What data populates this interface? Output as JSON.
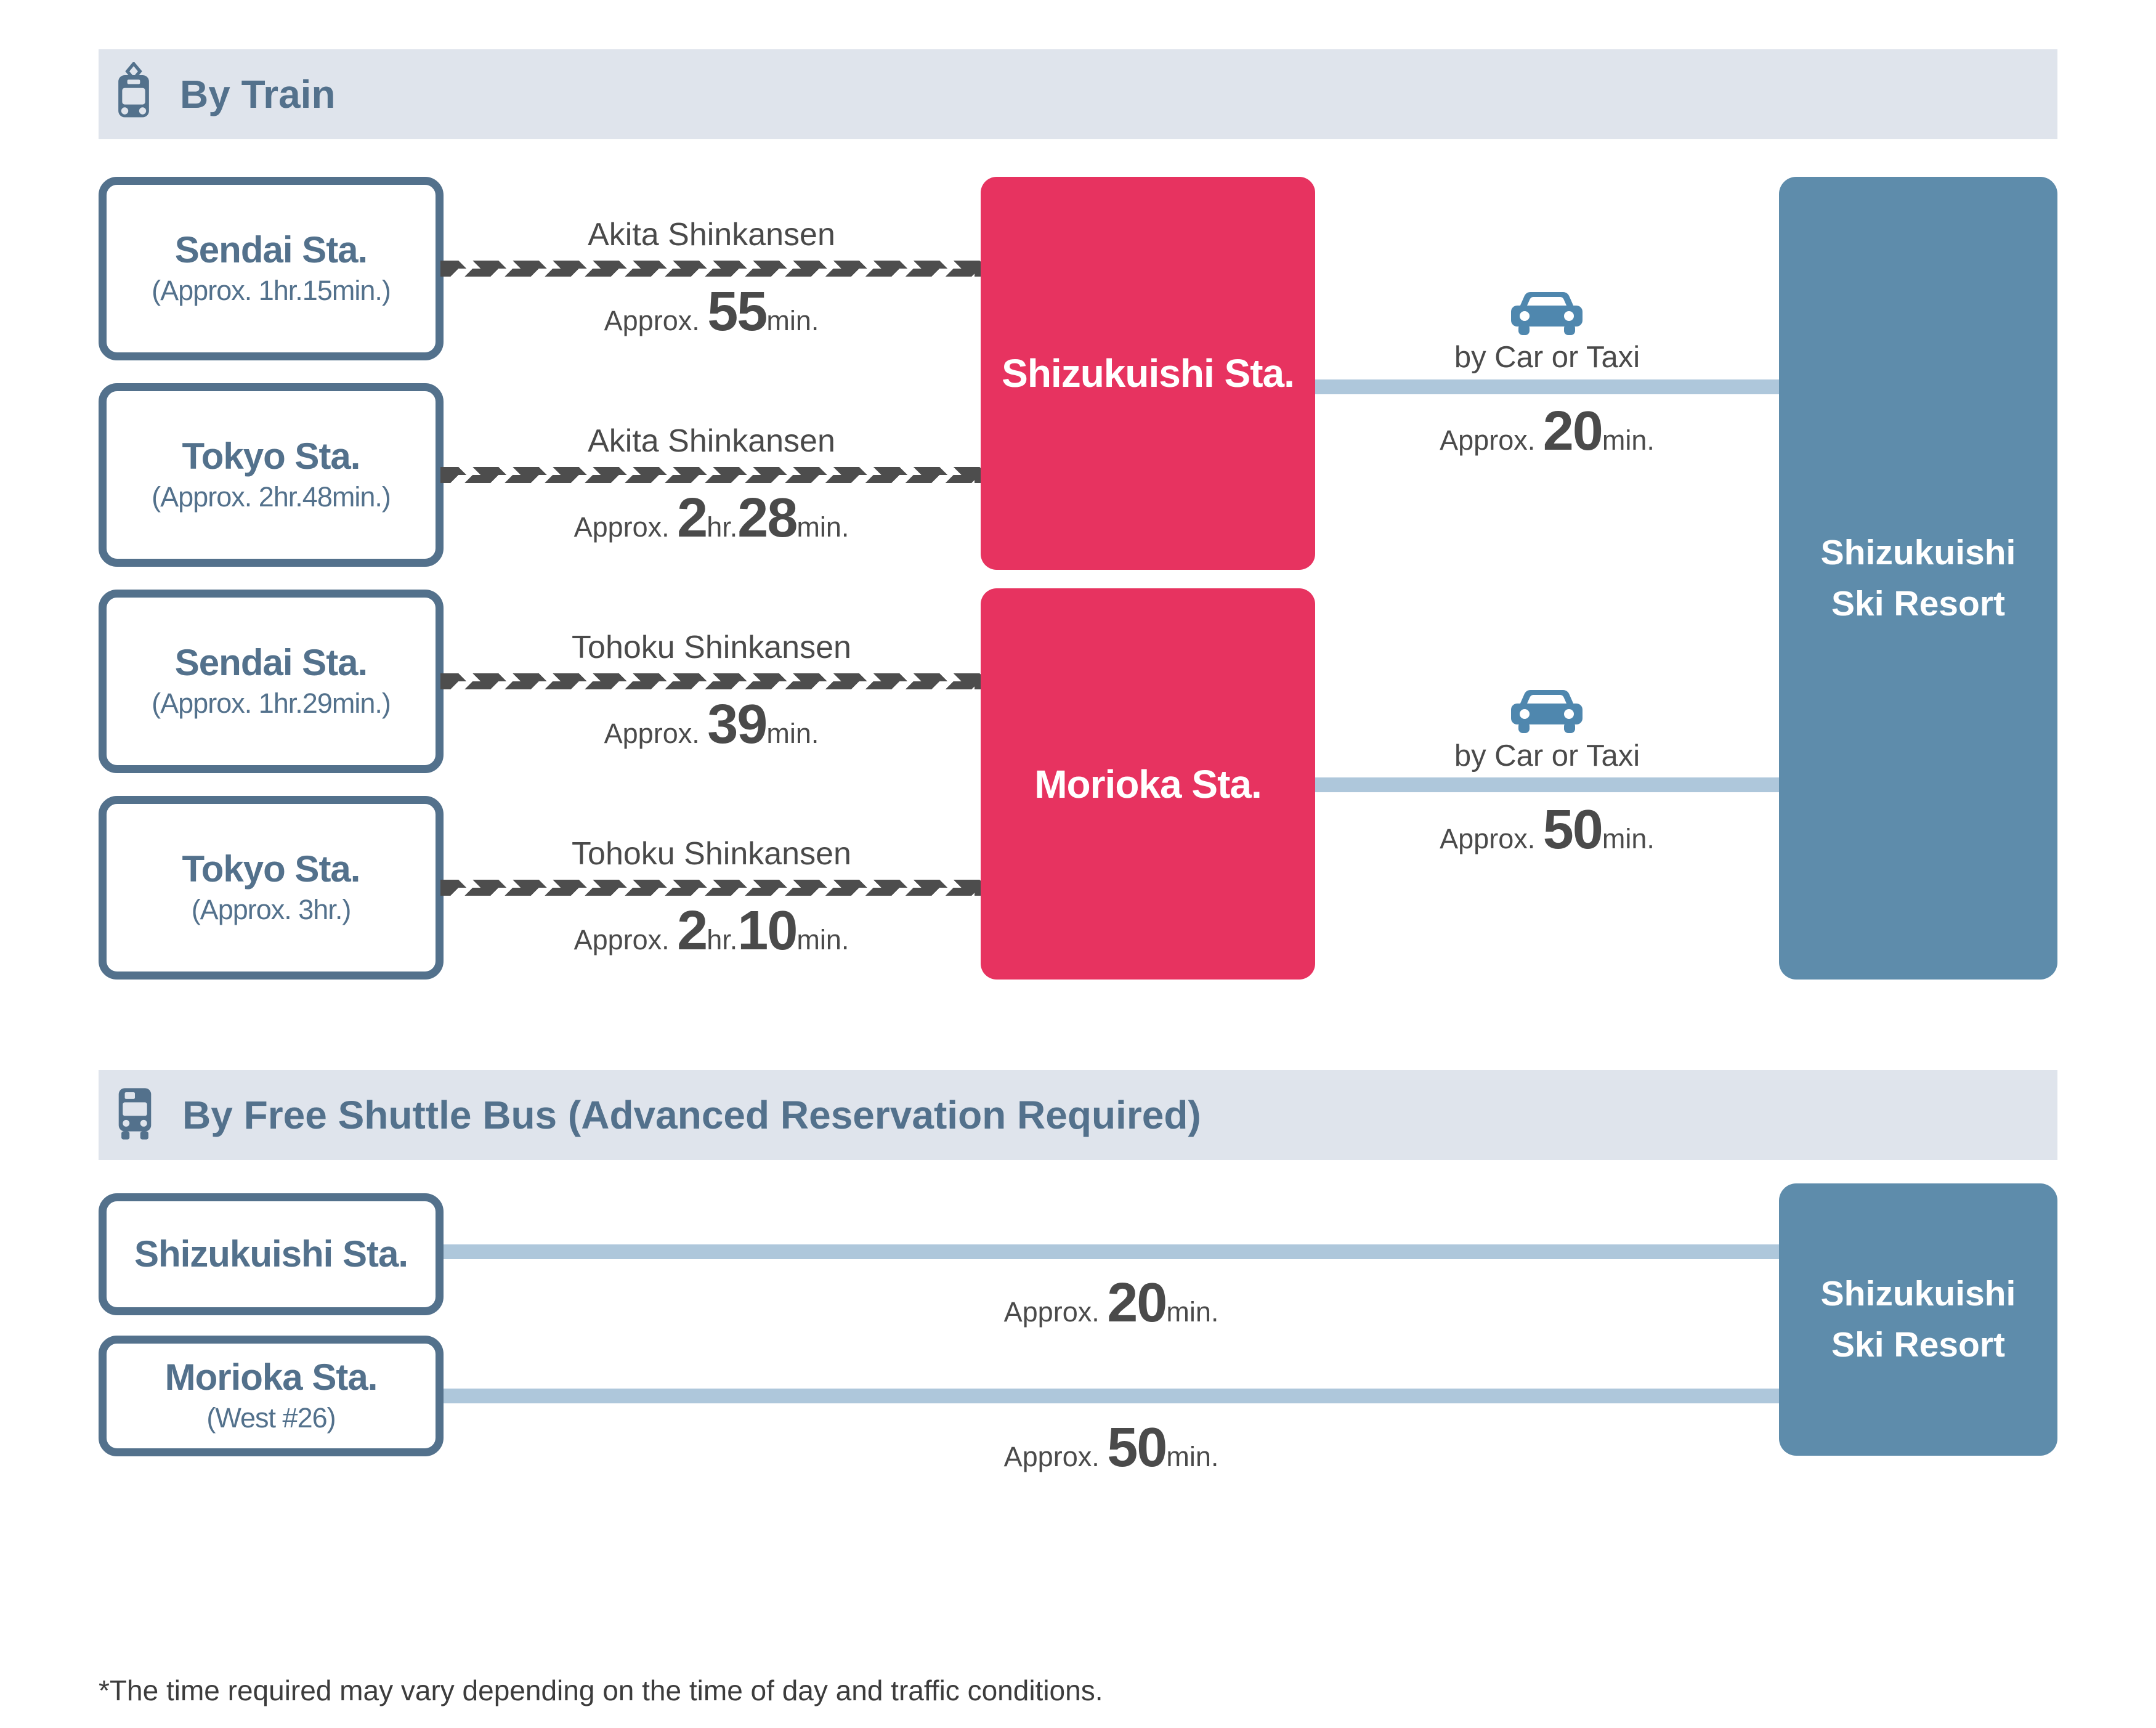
{
  "train_section": {
    "title": "By Train",
    "routes": [
      {
        "origin": "Sendai Sta.",
        "origin_note": "(Approx. 1hr.15min.)",
        "line": "Akita Shinkansen",
        "duration": [
          {
            "t": "Approx. ",
            "s": "sm"
          },
          {
            "t": "55",
            "s": "lg"
          },
          {
            "t": "min.",
            "s": "sm"
          }
        ]
      },
      {
        "origin": "Tokyo Sta.",
        "origin_note": "(Approx. 2hr.48min.)",
        "line": "Akita Shinkansen",
        "duration": [
          {
            "t": "Approx. ",
            "s": "sm"
          },
          {
            "t": "2",
            "s": "lg"
          },
          {
            "t": "hr.",
            "s": "sm"
          },
          {
            "t": "28",
            "s": "lg"
          },
          {
            "t": "min.",
            "s": "sm"
          }
        ]
      },
      {
        "origin": "Sendai Sta.",
        "origin_note": "(Approx. 1hr.29min.)",
        "line": "Tohoku Shinkansen",
        "duration": [
          {
            "t": "Approx. ",
            "s": "sm"
          },
          {
            "t": "39",
            "s": "lg"
          },
          {
            "t": "min.",
            "s": "sm"
          }
        ]
      },
      {
        "origin": "Tokyo Sta.",
        "origin_note": "(Approx. 3hr.)",
        "line": "Tohoku Shinkansen",
        "duration": [
          {
            "t": "Approx. ",
            "s": "sm"
          },
          {
            "t": "2",
            "s": "lg"
          },
          {
            "t": "hr.",
            "s": "sm"
          },
          {
            "t": "10",
            "s": "lg"
          },
          {
            "t": "min.",
            "s": "sm"
          }
        ]
      }
    ],
    "hubs": [
      {
        "name": "Shizukuishi Sta."
      },
      {
        "name": "Morioka Sta."
      }
    ],
    "transfers": [
      {
        "label": "by Car or Taxi",
        "duration": [
          {
            "t": "Approx. ",
            "s": "sm"
          },
          {
            "t": "20",
            "s": "lg"
          },
          {
            "t": "min.",
            "s": "sm"
          }
        ]
      },
      {
        "label": "by Car or Taxi",
        "duration": [
          {
            "t": "Approx. ",
            "s": "sm"
          },
          {
            "t": "50",
            "s": "lg"
          },
          {
            "t": "min.",
            "s": "sm"
          }
        ]
      }
    ],
    "destination": "Shizukuishi Ski Resort"
  },
  "bus_section": {
    "title": "By Free Shuttle Bus (Advanced Reservation Required)",
    "routes": [
      {
        "origin": "Shizukuishi Sta.",
        "origin_note": "",
        "duration": [
          {
            "t": "Approx. ",
            "s": "sm"
          },
          {
            "t": "20",
            "s": "lg"
          },
          {
            "t": "min.",
            "s": "sm"
          }
        ]
      },
      {
        "origin": "Morioka Sta.",
        "origin_note": "(West #26)",
        "duration": [
          {
            "t": "Approx. ",
            "s": "sm"
          },
          {
            "t": "50",
            "s": "lg"
          },
          {
            "t": "min.",
            "s": "sm"
          }
        ]
      }
    ],
    "destination": "Shizukuishi Ski Resort"
  },
  "footnote": "*The time required may vary depending on the time of day and traffic conditions.",
  "colors": {
    "slate": "#53718c",
    "pink": "#e73360",
    "steel_blue": "#5e8cab",
    "car_icon_blue": "#4f87ae",
    "band_dark": "#4d4d4d",
    "line_blue": "#aec7db",
    "header_bg": "#dfe4ec",
    "text_dark": "#4a4a4a"
  }
}
